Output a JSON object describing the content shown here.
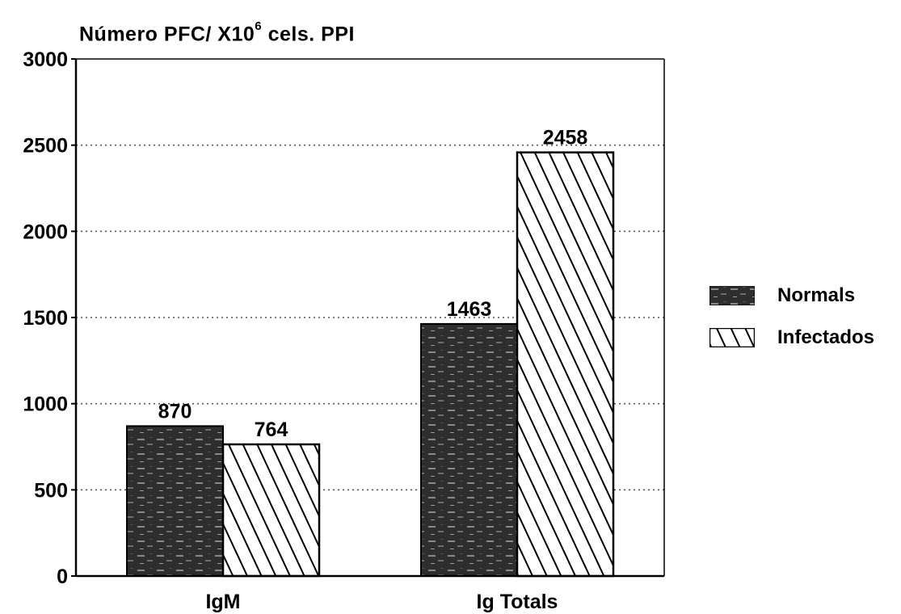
{
  "chart_data": {
    "type": "bar",
    "ylabel": "Número PFC/ X10",
    "ylabel_exponent": "6",
    "ylabel_suffix": " cels. PPI",
    "categories": [
      "IgM",
      "Ig Totals"
    ],
    "series": [
      {
        "name": "Normals",
        "values": [
          870,
          1463
        ],
        "labels": [
          "870",
          "1463"
        ],
        "fill": "dark-speckled"
      },
      {
        "name": "Infectados",
        "values": [
          764,
          2458
        ],
        "labels": [
          "764",
          "2458"
        ],
        "fill": "diagonal-hatch"
      }
    ],
    "ylim": [
      0,
      3000
    ],
    "yticks": [
      0,
      500,
      1000,
      1500,
      2000,
      2500,
      3000
    ],
    "grid": "horizontal-dotted",
    "legend_position": "right",
    "colors": {
      "normals": "#2b2b2b",
      "hatch": "#000000",
      "axis": "#000000",
      "grid": "#555555"
    }
  }
}
